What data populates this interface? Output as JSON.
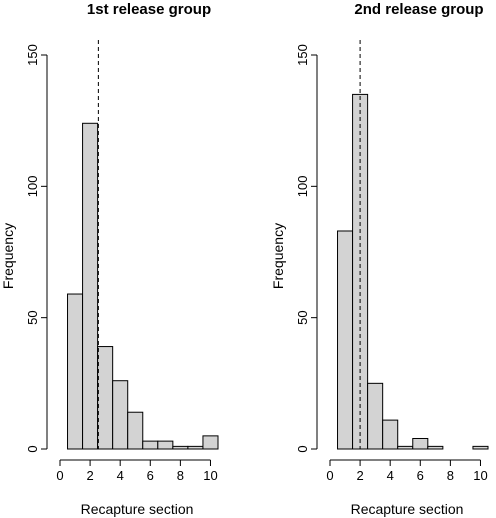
{
  "chart_data": [
    {
      "type": "bar",
      "title": "1st release group",
      "xlabel": "Recapture section",
      "ylabel": "Frequency",
      "bin_edges": [
        0.5,
        1.5,
        2.5,
        3.5,
        4.5,
        5.5,
        6.5,
        7.5,
        8.5,
        9.5,
        10.5
      ],
      "values": [
        59,
        124,
        39,
        26,
        14,
        3,
        3,
        1,
        1,
        5
      ],
      "xlim": [
        0,
        10.5
      ],
      "ylim": [
        0,
        150
      ],
      "x_ticks": [
        0,
        2,
        4,
        6,
        8,
        10
      ],
      "y_ticks": [
        0,
        50,
        100,
        150
      ],
      "reference_line_x": 2.55,
      "grid": false
    },
    {
      "type": "bar",
      "title": "2nd release group",
      "xlabel": "Recapture section",
      "ylabel": "Frequency",
      "bin_edges": [
        0.5,
        1.5,
        2.5,
        3.5,
        4.5,
        5.5,
        6.5,
        7.5,
        8.5,
        9.5,
        10.5
      ],
      "values": [
        83,
        135,
        25,
        11,
        1,
        4,
        1,
        0,
        0,
        1
      ],
      "xlim": [
        0,
        10.5
      ],
      "ylim": [
        0,
        150
      ],
      "x_ticks": [
        0,
        2,
        4,
        6,
        8,
        10
      ],
      "y_ticks": [
        0,
        50,
        100,
        150
      ],
      "reference_line_x": 2.0,
      "grid": false
    }
  ],
  "colors": {
    "bar_fill": "#d3d3d3",
    "stroke": "#000000",
    "background": "#ffffff"
  }
}
